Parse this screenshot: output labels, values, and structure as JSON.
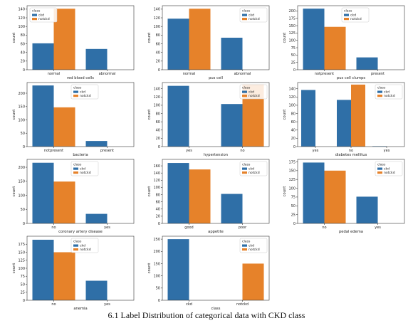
{
  "caption": "6.1 Label Distribution of categorical data with CKD class",
  "colors": {
    "ckd": "#2f6fa7",
    "notckd": "#e6822a"
  },
  "chart_data": [
    {
      "type": "bar",
      "title": "",
      "xlabel": "red blood cells",
      "ylabel": "count",
      "categories": [
        "normal",
        "abnormal"
      ],
      "yticks": [
        0,
        20,
        40,
        60,
        80,
        100,
        120,
        140
      ],
      "ylim": [
        0,
        148
      ],
      "legend_title": "class",
      "legend_position": "top-left",
      "series": [
        {
          "name": "ckd",
          "values": [
            61,
            48
          ]
        },
        {
          "name": "notckd",
          "values": [
            141,
            0
          ]
        }
      ]
    },
    {
      "type": "bar",
      "title": "",
      "xlabel": "pus cell",
      "ylabel": "count",
      "categories": [
        "normal",
        "abnormal"
      ],
      "yticks": [
        0,
        20,
        40,
        60,
        80,
        100,
        120,
        140
      ],
      "ylim": [
        0,
        148
      ],
      "legend_title": "class",
      "legend_position": "top-right",
      "series": [
        {
          "name": "ckd",
          "values": [
            118,
            74
          ]
        },
        {
          "name": "notckd",
          "values": [
            141,
            0
          ]
        }
      ]
    },
    {
      "type": "bar",
      "title": "",
      "xlabel": "pus cell clumps",
      "ylabel": "count",
      "categories": [
        "notpresent",
        "present"
      ],
      "yticks": [
        0,
        25,
        50,
        75,
        100,
        125,
        150,
        175,
        200
      ],
      "ylim": [
        0,
        218
      ],
      "legend_title": "class",
      "legend_position": "top-center",
      "series": [
        {
          "name": "ckd",
          "values": [
            208,
            42
          ]
        },
        {
          "name": "notckd",
          "values": [
            146,
            0
          ]
        }
      ]
    },
    {
      "type": "bar",
      "title": "",
      "xlabel": "bacteria",
      "ylabel": "count",
      "categories": [
        "notpresent",
        "present"
      ],
      "yticks": [
        0,
        50,
        100,
        150,
        200
      ],
      "ylim": [
        0,
        240
      ],
      "legend_title": "class",
      "legend_position": "top-center",
      "series": [
        {
          "name": "ckd",
          "values": [
            229,
            21
          ]
        },
        {
          "name": "notckd",
          "values": [
            147,
            0
          ]
        }
      ]
    },
    {
      "type": "bar",
      "title": "",
      "xlabel": "hypertension",
      "ylabel": "count",
      "categories": [
        "yes",
        "no"
      ],
      "yticks": [
        0,
        20,
        40,
        60,
        80,
        100,
        120,
        140
      ],
      "ylim": [
        0,
        155
      ],
      "legend_title": "class",
      "legend_position": "top-right",
      "series": [
        {
          "name": "ckd",
          "values": [
            147,
            103
          ]
        },
        {
          "name": "notckd",
          "values": [
            0,
            150
          ]
        }
      ]
    },
    {
      "type": "bar",
      "title": "",
      "xlabel": "diabetes mellitus",
      "ylabel": "count",
      "categories": [
        "yes",
        "no",
        "yes"
      ],
      "yticks": [
        0,
        20,
        40,
        60,
        80,
        100,
        120,
        140
      ],
      "ylim": [
        0,
        155
      ],
      "legend_title": "class",
      "legend_position": "top-right",
      "series": [
        {
          "name": "ckd",
          "values": [
            137,
            113,
            1
          ]
        },
        {
          "name": "notckd",
          "values": [
            0,
            150,
            0
          ]
        }
      ]
    },
    {
      "type": "bar",
      "title": "",
      "xlabel": "coronary artery disease",
      "ylabel": "count",
      "categories": [
        "no",
        "yes"
      ],
      "yticks": [
        0,
        50,
        100,
        150,
        200
      ],
      "ylim": [
        0,
        228
      ],
      "legend_title": "class",
      "legend_position": "top-center",
      "series": [
        {
          "name": "ckd",
          "values": [
            216,
            34
          ]
        },
        {
          "name": "notckd",
          "values": [
            149,
            0
          ]
        }
      ]
    },
    {
      "type": "bar",
      "title": "",
      "xlabel": "appetite",
      "ylabel": "count",
      "categories": [
        "good",
        "poor"
      ],
      "yticks": [
        0,
        20,
        40,
        60,
        80,
        100,
        120,
        140,
        160
      ],
      "ylim": [
        0,
        178
      ],
      "legend_title": "class",
      "legend_position": "top-right",
      "series": [
        {
          "name": "ckd",
          "values": [
            168,
            82
          ]
        },
        {
          "name": "notckd",
          "values": [
            150,
            0
          ]
        }
      ]
    },
    {
      "type": "bar",
      "title": "",
      "xlabel": "pedal edema",
      "ylabel": "count",
      "categories": [
        "no",
        "yes"
      ],
      "yticks": [
        0,
        25,
        50,
        75,
        100,
        125,
        150,
        175
      ],
      "ylim": [
        0,
        182
      ],
      "legend_title": "class",
      "legend_position": "top-right",
      "series": [
        {
          "name": "ckd",
          "values": [
            173,
            76
          ]
        },
        {
          "name": "notckd",
          "values": [
            150,
            0
          ]
        }
      ]
    },
    {
      "type": "bar",
      "title": "",
      "xlabel": "anemia",
      "ylabel": "count",
      "categories": [
        "no",
        "yes"
      ],
      "yticks": [
        0,
        25,
        50,
        75,
        100,
        125,
        150,
        175
      ],
      "ylim": [
        0,
        200
      ],
      "legend_title": "class",
      "legend_position": "top-center",
      "series": [
        {
          "name": "ckd",
          "values": [
            189,
            61
          ]
        },
        {
          "name": "notckd",
          "values": [
            150,
            0
          ]
        }
      ]
    },
    {
      "type": "bar",
      "title": "",
      "xlabel": "class",
      "ylabel": "count",
      "categories": [
        "ckd",
        "notckd"
      ],
      "yticks": [
        0,
        50,
        100,
        150,
        200,
        250
      ],
      "ylim": [
        0,
        262
      ],
      "legend_title": "class",
      "legend_position": "top-right",
      "series": [
        {
          "name": "ckd",
          "values": [
            250,
            0
          ]
        },
        {
          "name": "notckd",
          "values": [
            0,
            150
          ]
        }
      ]
    }
  ]
}
